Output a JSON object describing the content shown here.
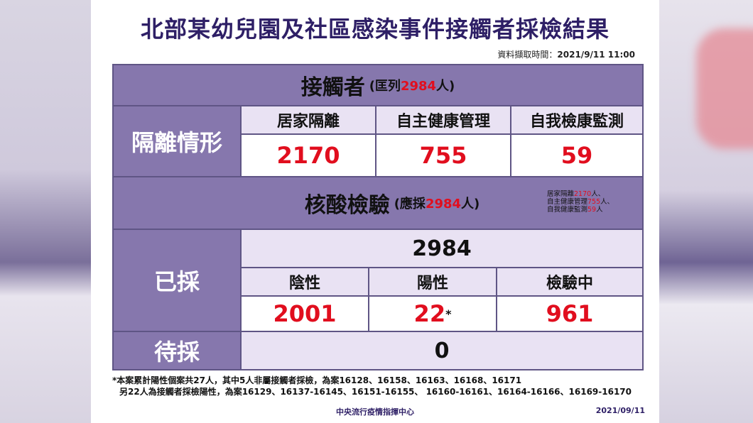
{
  "title": "北部某幼兒園及社區感染事件接觸者採檢結果",
  "source_label": "資料擷取時間：",
  "source_time": "2021/9/11  11:00",
  "contacts": {
    "heading": "接觸者",
    "paren_prefix": "(匡列",
    "paren_num": "2984",
    "paren_suffix": "人)"
  },
  "isolation": {
    "row_label": "隔離情形",
    "headers": [
      "居家隔離",
      "自主健康管理",
      "自我檢康監測"
    ],
    "values": [
      "2170",
      "755",
      "59"
    ]
  },
  "testing": {
    "heading": "核酸檢驗",
    "paren_prefix": "(應採",
    "paren_num": "2984",
    "paren_suffix": "人)",
    "note": [
      {
        "label": "居家隔離",
        "num": "2170",
        "unit": "人、"
      },
      {
        "label": "自主健康管理",
        "num": "755",
        "unit": "人、"
      },
      {
        "label": "自我健康監測",
        "num": "59",
        "unit": "人"
      }
    ]
  },
  "collected": {
    "row_label": "已採",
    "total": "2984",
    "headers": [
      "陰性",
      "陽性",
      "檢驗中"
    ],
    "negative": "2001",
    "positive": "22",
    "positive_mark": "*",
    "pending": "961"
  },
  "pending_collect": {
    "row_label": "待採",
    "value": "0"
  },
  "footnote_line1": "*本案累計陽性個案共27人，其中5人非屬接觸者採檢，為案16128、16158、16163、16168、16171",
  "footnote_line2": "另22人為接觸者採檢陽性，為案16129、16137-16145、16151-16155、 16160-16161、16164-16166、16169-16170",
  "footer_org": "中央流行疫情指揮中心",
  "footer_date": "2021/09/11"
}
